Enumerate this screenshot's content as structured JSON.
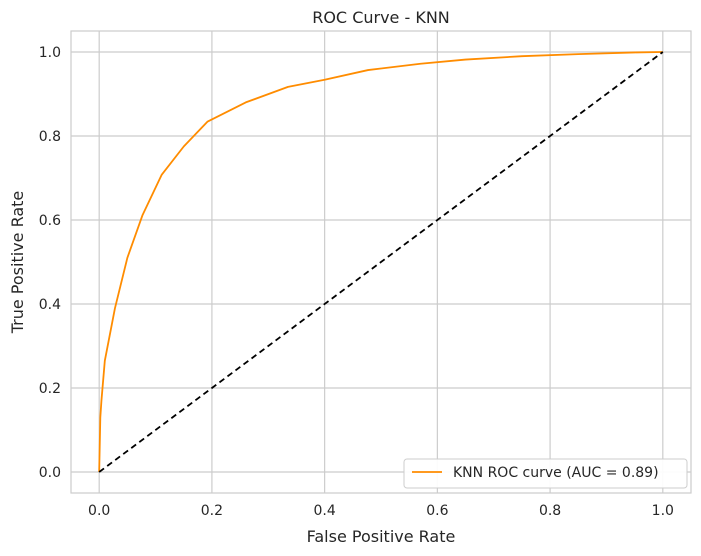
{
  "chart_data": {
    "type": "line",
    "title": "ROC Curve - KNN",
    "xlabel": "False Positive Rate",
    "ylabel": "True Positive Rate",
    "xlim": [
      -0.05,
      1.05
    ],
    "ylim": [
      -0.05,
      1.05
    ],
    "xticks": [
      0.0,
      0.2,
      0.4,
      0.6,
      0.8,
      1.0
    ],
    "yticks": [
      0.0,
      0.2,
      0.4,
      0.6,
      0.8,
      1.0
    ],
    "xtick_labels": [
      "0.0",
      "0.2",
      "0.4",
      "0.6",
      "0.8",
      "1.0"
    ],
    "ytick_labels": [
      "0.0",
      "0.2",
      "0.4",
      "0.6",
      "0.8",
      "1.0"
    ],
    "grid": true,
    "legend_position": "lower-right",
    "series": [
      {
        "name": "KNN ROC curve (AUC = 0.89)",
        "color": "#ff8c00",
        "line_style": "solid",
        "x": [
          0.0,
          0.002,
          0.004,
          0.01,
          0.028,
          0.05,
          0.077,
          0.111,
          0.15,
          0.192,
          0.26,
          0.335,
          0.4,
          0.477,
          0.57,
          0.65,
          0.75,
          0.85,
          0.95,
          1.0
        ],
        "y": [
          0.0,
          0.13,
          0.17,
          0.265,
          0.39,
          0.51,
          0.612,
          0.708,
          0.775,
          0.834,
          0.88,
          0.917,
          0.934,
          0.957,
          0.972,
          0.982,
          0.99,
          0.995,
          0.999,
          1.0
        ]
      },
      {
        "name": "",
        "color": "#000000",
        "line_style": "dashed",
        "x": [
          0.0,
          1.0
        ],
        "y": [
          0.0,
          1.0
        ]
      }
    ]
  }
}
